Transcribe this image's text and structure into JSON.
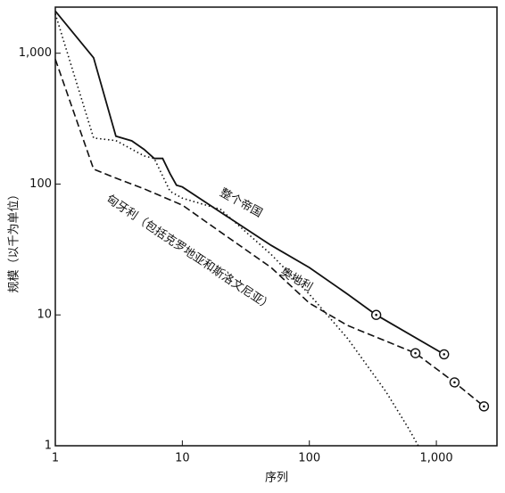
{
  "chart_data": {
    "type": "line",
    "log_x": true,
    "log_y": true,
    "x_label": "序列",
    "y_label": "规模（以千为单位）",
    "xlim": [
      1,
      3000
    ],
    "ylim": [
      1,
      2250
    ],
    "xticks": [
      1,
      10,
      100,
      {
        "value": 1000,
        "label": "1,000"
      }
    ],
    "yticks": [
      1,
      10,
      100,
      {
        "value": 1000,
        "label": "1,000"
      }
    ],
    "series": [
      {
        "name": "整个帝国",
        "color": "#111111",
        "dash": "solid",
        "x": [
          1,
          2,
          3,
          4,
          5,
          6,
          7,
          8,
          9,
          10,
          20,
          50,
          100,
          200,
          336,
          1150
        ],
        "values": [
          2100,
          923,
          232,
          214,
          184,
          157,
          157,
          120,
          98,
          95,
          61,
          34,
          23,
          14.4,
          10,
          5
        ],
        "circled": [
          false,
          false,
          false,
          false,
          false,
          false,
          false,
          false,
          false,
          false,
          false,
          false,
          false,
          false,
          true,
          true
        ]
      },
      {
        "name": "奥地利",
        "color": "#111111",
        "dash": "dotted",
        "x": [
          1,
          2,
          3,
          5,
          6,
          8,
          10,
          20,
          50,
          100,
          200,
          400,
          600,
          720
        ],
        "values": [
          2000,
          225,
          215,
          164,
          157,
          88,
          78,
          64,
          29,
          14.4,
          6.6,
          2.6,
          1.37,
          1
        ],
        "circled": [
          false,
          false,
          false,
          false,
          false,
          false,
          false,
          false,
          false,
          false,
          false,
          false,
          false,
          false
        ]
      },
      {
        "name": "匈牙利（包括克罗地亚和斯洛文尼亚）",
        "color": "#111111",
        "dash": "dashed",
        "x": [
          1,
          2,
          3,
          5,
          10,
          20,
          50,
          100,
          200,
          684,
          1390,
          2370
        ],
        "values": [
          900,
          130,
          111,
          92,
          69,
          43,
          23,
          12.3,
          8.3,
          5.1,
          3.05,
          2
        ],
        "circled": [
          false,
          false,
          false,
          false,
          false,
          false,
          false,
          false,
          false,
          true,
          true,
          true
        ]
      }
    ]
  }
}
